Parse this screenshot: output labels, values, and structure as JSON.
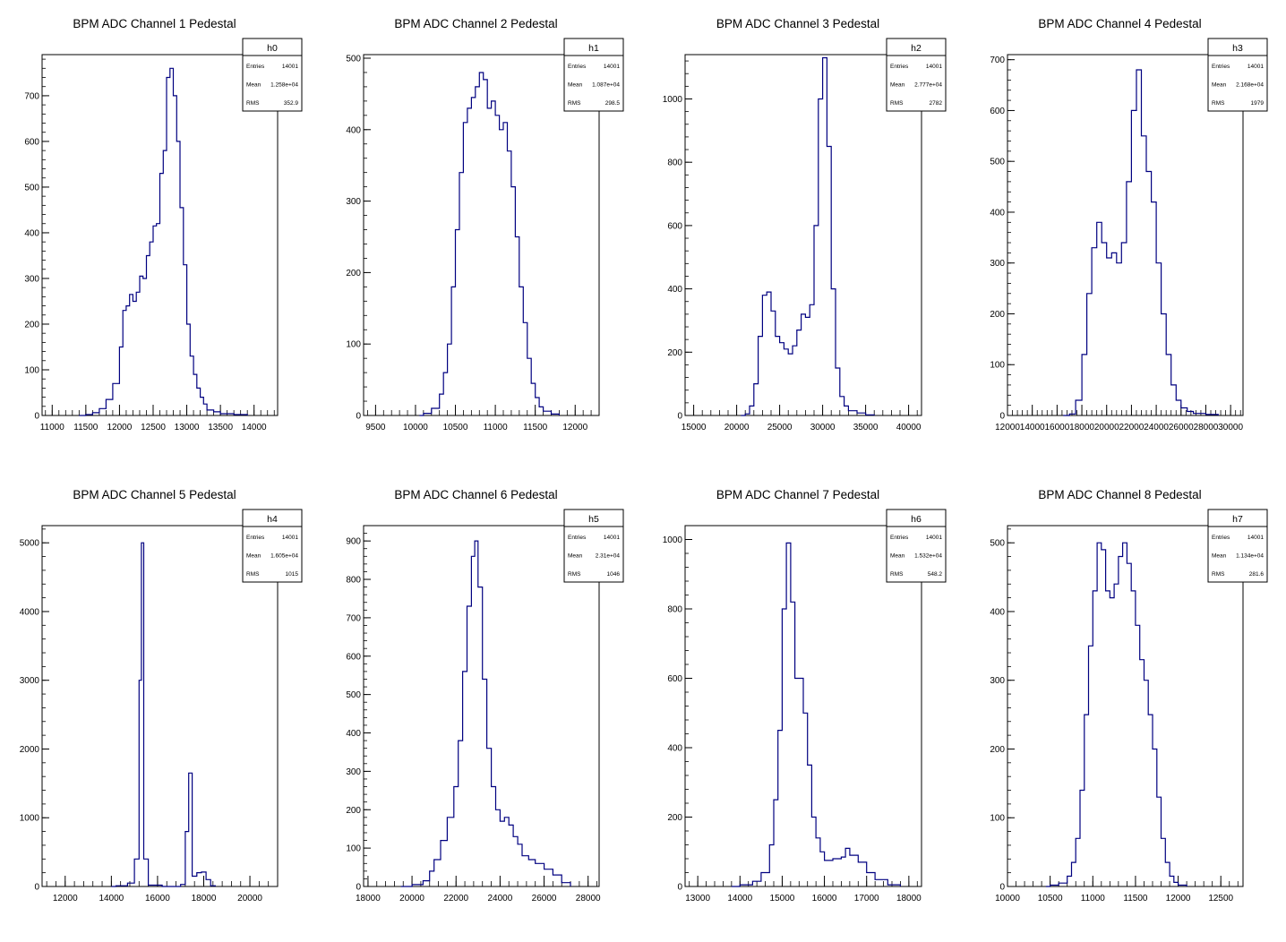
{
  "colors": {
    "histogram": "#000080",
    "frame": "#000000",
    "background": "#ffffff"
  },
  "chart_data": [
    {
      "type": "histogram",
      "title": "BPM ADC Channel 1 Pedestal",
      "stats": {
        "name": "h0",
        "entries": "14001",
        "mean": "1.258e+04",
        "rms": "352.9"
      },
      "xlim": [
        10850,
        14350
      ],
      "ylim": [
        0,
        790
      ],
      "xticks": [
        11000,
        11500,
        12000,
        12500,
        13000,
        13500,
        14000
      ],
      "yticks": [
        0,
        100,
        200,
        300,
        400,
        500,
        600,
        700
      ],
      "points": [
        [
          11400,
          0
        ],
        [
          11500,
          2
        ],
        [
          11600,
          6
        ],
        [
          11700,
          15
        ],
        [
          11800,
          35
        ],
        [
          11900,
          70
        ],
        [
          12000,
          150
        ],
        [
          12050,
          230
        ],
        [
          12100,
          240
        ],
        [
          12150,
          265
        ],
        [
          12200,
          250
        ],
        [
          12250,
          270
        ],
        [
          12300,
          305
        ],
        [
          12350,
          300
        ],
        [
          12400,
          350
        ],
        [
          12450,
          380
        ],
        [
          12500,
          415
        ],
        [
          12550,
          420
        ],
        [
          12600,
          530
        ],
        [
          12650,
          580
        ],
        [
          12700,
          740
        ],
        [
          12750,
          760
        ],
        [
          12800,
          700
        ],
        [
          12850,
          600
        ],
        [
          12900,
          455
        ],
        [
          12950,
          330
        ],
        [
          13000,
          200
        ],
        [
          13050,
          130
        ],
        [
          13100,
          90
        ],
        [
          13150,
          60
        ],
        [
          13200,
          40
        ],
        [
          13250,
          25
        ],
        [
          13300,
          12
        ],
        [
          13400,
          8
        ],
        [
          13500,
          4
        ],
        [
          13700,
          2
        ],
        [
          13900,
          0
        ]
      ]
    },
    {
      "type": "histogram",
      "title": "BPM ADC Channel 2 Pedestal",
      "stats": {
        "name": "h1",
        "entries": "14001",
        "mean": "1.087e+04",
        "rms": "298.5"
      },
      "xlim": [
        9350,
        12300
      ],
      "ylim": [
        0,
        505
      ],
      "xticks": [
        9500,
        10000,
        10500,
        11000,
        11500,
        12000
      ],
      "yticks": [
        0,
        100,
        200,
        300,
        400,
        500
      ],
      "points": [
        [
          10050,
          0
        ],
        [
          10100,
          3
        ],
        [
          10200,
          10
        ],
        [
          10300,
          30
        ],
        [
          10350,
          60
        ],
        [
          10400,
          100
        ],
        [
          10450,
          180
        ],
        [
          10500,
          260
        ],
        [
          10550,
          340
        ],
        [
          10600,
          410
        ],
        [
          10650,
          430
        ],
        [
          10700,
          445
        ],
        [
          10750,
          460
        ],
        [
          10800,
          480
        ],
        [
          10850,
          470
        ],
        [
          10900,
          430
        ],
        [
          10950,
          440
        ],
        [
          11000,
          420
        ],
        [
          11050,
          400
        ],
        [
          11100,
          410
        ],
        [
          11150,
          370
        ],
        [
          11200,
          320
        ],
        [
          11250,
          250
        ],
        [
          11300,
          180
        ],
        [
          11350,
          130
        ],
        [
          11400,
          80
        ],
        [
          11450,
          45
        ],
        [
          11500,
          25
        ],
        [
          11550,
          12
        ],
        [
          11600,
          6
        ],
        [
          11700,
          2
        ],
        [
          11800,
          0
        ]
      ]
    },
    {
      "type": "histogram",
      "title": "BPM ADC Channel 3 Pedestal",
      "stats": {
        "name": "h2",
        "entries": "14001",
        "mean": "2.777e+04",
        "rms": "2782"
      },
      "xlim": [
        14000,
        41500
      ],
      "ylim": [
        0,
        1140
      ],
      "xticks": [
        15000,
        20000,
        25000,
        30000,
        35000,
        40000
      ],
      "yticks": [
        0,
        200,
        400,
        600,
        800,
        1000
      ],
      "points": [
        [
          20500,
          0
        ],
        [
          21000,
          5
        ],
        [
          21500,
          30
        ],
        [
          22000,
          100
        ],
        [
          22500,
          250
        ],
        [
          23000,
          380
        ],
        [
          23500,
          390
        ],
        [
          24000,
          330
        ],
        [
          24500,
          250
        ],
        [
          25000,
          230
        ],
        [
          25500,
          210
        ],
        [
          26000,
          195
        ],
        [
          26500,
          220
        ],
        [
          27000,
          270
        ],
        [
          27500,
          320
        ],
        [
          28000,
          310
        ],
        [
          28500,
          350
        ],
        [
          29000,
          600
        ],
        [
          29500,
          1000
        ],
        [
          30000,
          1130
        ],
        [
          30500,
          850
        ],
        [
          31000,
          400
        ],
        [
          31500,
          150
        ],
        [
          32000,
          60
        ],
        [
          32500,
          30
        ],
        [
          33000,
          15
        ],
        [
          34000,
          8
        ],
        [
          35000,
          2
        ],
        [
          36000,
          0
        ]
      ]
    },
    {
      "type": "histogram",
      "title": "BPM ADC Channel 4 Pedestal",
      "stats": {
        "name": "h3",
        "entries": "14001",
        "mean": "2.168e+04",
        "rms": "1979"
      },
      "xlim": [
        12000,
        31000
      ],
      "ylim": [
        0,
        710
      ],
      "xticks": [
        12000,
        14000,
        16000,
        18000,
        20000,
        22000,
        24000,
        26000,
        28000,
        30000
      ],
      "yticks": [
        0,
        100,
        200,
        300,
        400,
        500,
        600,
        700
      ],
      "points": [
        [
          16500,
          0
        ],
        [
          17000,
          3
        ],
        [
          17500,
          30
        ],
        [
          18000,
          120
        ],
        [
          18400,
          240
        ],
        [
          18800,
          330
        ],
        [
          19200,
          380
        ],
        [
          19600,
          340
        ],
        [
          20000,
          310
        ],
        [
          20400,
          320
        ],
        [
          20800,
          300
        ],
        [
          21200,
          340
        ],
        [
          21600,
          460
        ],
        [
          22000,
          600
        ],
        [
          22400,
          680
        ],
        [
          22800,
          550
        ],
        [
          23200,
          480
        ],
        [
          23600,
          420
        ],
        [
          24000,
          300
        ],
        [
          24400,
          200
        ],
        [
          24800,
          120
        ],
        [
          25200,
          60
        ],
        [
          25600,
          30
        ],
        [
          26000,
          15
        ],
        [
          26500,
          8
        ],
        [
          27000,
          4
        ],
        [
          28000,
          2
        ],
        [
          29000,
          0
        ]
      ]
    },
    {
      "type": "histogram",
      "title": "BPM ADC Channel 5 Pedestal",
      "stats": {
        "name": "h4",
        "entries": "14001",
        "mean": "1.605e+04",
        "rms": "1015"
      },
      "xlim": [
        11000,
        21200
      ],
      "ylim": [
        0,
        5250
      ],
      "xticks": [
        12000,
        14000,
        16000,
        18000,
        20000
      ],
      "yticks": [
        0,
        1000,
        2000,
        3000,
        4000,
        5000
      ],
      "points": [
        [
          14000,
          0
        ],
        [
          14200,
          10
        ],
        [
          14700,
          50
        ],
        [
          15000,
          400
        ],
        [
          15200,
          3000
        ],
        [
          15300,
          5000
        ],
        [
          15400,
          400
        ],
        [
          15600,
          20
        ],
        [
          16200,
          0
        ],
        [
          17000,
          30
        ],
        [
          17200,
          800
        ],
        [
          17350,
          1650
        ],
        [
          17500,
          150
        ],
        [
          17700,
          200
        ],
        [
          17900,
          210
        ],
        [
          18100,
          100
        ],
        [
          18300,
          10
        ],
        [
          18500,
          0
        ]
      ]
    },
    {
      "type": "histogram",
      "title": "BPM ADC Channel 6 Pedestal",
      "stats": {
        "name": "h5",
        "entries": "14001",
        "mean": "2.31e+04",
        "rms": "1046"
      },
      "xlim": [
        17800,
        28500
      ],
      "ylim": [
        0,
        940
      ],
      "xticks": [
        18000,
        20000,
        22000,
        24000,
        26000,
        28000
      ],
      "yticks": [
        0,
        100,
        200,
        300,
        400,
        500,
        600,
        700,
        800,
        900
      ],
      "points": [
        [
          19500,
          0
        ],
        [
          20000,
          5
        ],
        [
          20500,
          15
        ],
        [
          20800,
          40
        ],
        [
          21000,
          70
        ],
        [
          21300,
          120
        ],
        [
          21600,
          180
        ],
        [
          21900,
          260
        ],
        [
          22100,
          380
        ],
        [
          22300,
          560
        ],
        [
          22500,
          730
        ],
        [
          22700,
          860
        ],
        [
          22850,
          900
        ],
        [
          23000,
          780
        ],
        [
          23200,
          540
        ],
        [
          23400,
          360
        ],
        [
          23600,
          260
        ],
        [
          23800,
          200
        ],
        [
          24000,
          170
        ],
        [
          24200,
          180
        ],
        [
          24400,
          160
        ],
        [
          24600,
          130
        ],
        [
          24800,
          110
        ],
        [
          25000,
          80
        ],
        [
          25300,
          70
        ],
        [
          25600,
          60
        ],
        [
          26000,
          45
        ],
        [
          26400,
          30
        ],
        [
          26800,
          10
        ],
        [
          27200,
          0
        ]
      ]
    },
    {
      "type": "histogram",
      "title": "BPM ADC Channel 7 Pedestal",
      "stats": {
        "name": "h6",
        "entries": "14001",
        "mean": "1.532e+04",
        "rms": "548.2"
      },
      "xlim": [
        12700,
        18300
      ],
      "ylim": [
        0,
        1040
      ],
      "xticks": [
        13000,
        14000,
        15000,
        16000,
        17000,
        18000
      ],
      "yticks": [
        0,
        200,
        400,
        600,
        800,
        1000
      ],
      "points": [
        [
          13800,
          0
        ],
        [
          14000,
          5
        ],
        [
          14300,
          15
        ],
        [
          14500,
          40
        ],
        [
          14700,
          120
        ],
        [
          14800,
          250
        ],
        [
          14900,
          450
        ],
        [
          15000,
          800
        ],
        [
          15100,
          990
        ],
        [
          15200,
          820
        ],
        [
          15300,
          600
        ],
        [
          15500,
          500
        ],
        [
          15600,
          350
        ],
        [
          15700,
          200
        ],
        [
          15800,
          140
        ],
        [
          15900,
          100
        ],
        [
          16000,
          75
        ],
        [
          16200,
          80
        ],
        [
          16400,
          85
        ],
        [
          16500,
          110
        ],
        [
          16600,
          90
        ],
        [
          16800,
          70
        ],
        [
          17000,
          40
        ],
        [
          17200,
          20
        ],
        [
          17500,
          5
        ],
        [
          17800,
          0
        ]
      ]
    },
    {
      "type": "histogram",
      "title": "BPM ADC Channel 8 Pedestal",
      "stats": {
        "name": "h7",
        "entries": "14001",
        "mean": "1.134e+04",
        "rms": "281.6"
      },
      "xlim": [
        10000,
        12760
      ],
      "ylim": [
        0,
        525
      ],
      "xticks": [
        10000,
        10500,
        11000,
        11500,
        12000,
        12500
      ],
      "yticks": [
        0,
        100,
        200,
        300,
        400,
        500
      ],
      "points": [
        [
          10450,
          0
        ],
        [
          10500,
          2
        ],
        [
          10600,
          5
        ],
        [
          10700,
          15
        ],
        [
          10750,
          35
        ],
        [
          10800,
          70
        ],
        [
          10850,
          140
        ],
        [
          10900,
          250
        ],
        [
          10950,
          350
        ],
        [
          11000,
          430
        ],
        [
          11050,
          500
        ],
        [
          11100,
          490
        ],
        [
          11150,
          430
        ],
        [
          11200,
          420
        ],
        [
          11250,
          440
        ],
        [
          11300,
          480
        ],
        [
          11350,
          500
        ],
        [
          11400,
          470
        ],
        [
          11450,
          430
        ],
        [
          11500,
          380
        ],
        [
          11550,
          330
        ],
        [
          11600,
          300
        ],
        [
          11650,
          250
        ],
        [
          11700,
          200
        ],
        [
          11750,
          130
        ],
        [
          11800,
          70
        ],
        [
          11850,
          35
        ],
        [
          11900,
          15
        ],
        [
          11950,
          6
        ],
        [
          12000,
          2
        ],
        [
          12100,
          0
        ]
      ]
    }
  ]
}
